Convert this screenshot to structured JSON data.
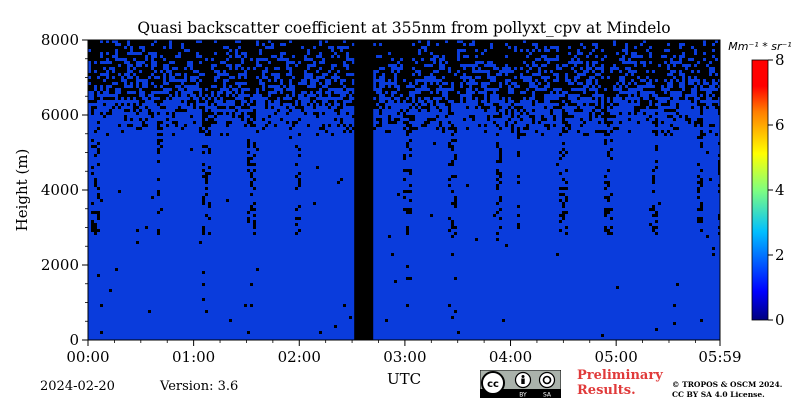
{
  "chart_data": {
    "type": "heatmap",
    "title": "Quasi backscatter coefficient at 355nm from pollyxt_cpv at Mindelo",
    "xlabel": "UTC",
    "ylabel": "Height (m)",
    "x_range": [
      "00:00",
      "05:59"
    ],
    "x_range_hours": [
      0,
      5.983
    ],
    "ylim": [
      0,
      8000
    ],
    "x_ticks": [
      "00:00",
      "01:00",
      "02:00",
      "03:00",
      "04:00",
      "05:00",
      "05:59"
    ],
    "x_tick_hours": [
      0,
      1,
      2,
      3,
      4,
      5,
      5.983
    ],
    "y_ticks": [
      0,
      2000,
      4000,
      6000,
      8000
    ],
    "colorbar": {
      "label": "Mm⁻¹ * sr⁻¹",
      "range": [
        0,
        8
      ],
      "ticks": [
        0,
        2,
        4,
        6,
        8
      ],
      "colormap": "jet"
    },
    "field": {
      "background_value": 0.3,
      "background_color": "#0a3cdc",
      "missing_color": "#000000",
      "missing_time_interval": [
        "02:31",
        "02:42"
      ],
      "missing_time_interval_hours": [
        2.52,
        2.7
      ],
      "noise_onset_height_m": 5500,
      "dense_noise_height_m": 6500
    }
  },
  "footer": {
    "date": "2024-02-20",
    "version": "Version: 3.6",
    "preliminary_line1": "Preliminary",
    "preliminary_line2": "Results.",
    "copyright_line1": "© TROPOS & OSCM 2024.",
    "copyright_line2": "CC BY SA 4.0 License.",
    "cc_by": "BY",
    "cc_sa": "SA"
  },
  "colors": {
    "jet_stops": [
      "#00007f",
      "#0000ff",
      "#007fff",
      "#00ffff",
      "#7fff7f",
      "#ffff00",
      "#ff7f00",
      "#ff0000",
      "#7f0000"
    ]
  }
}
